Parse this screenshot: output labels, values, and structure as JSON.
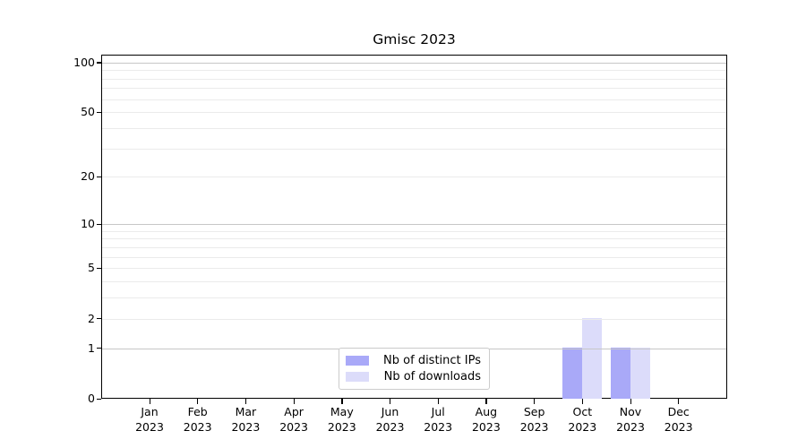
{
  "figure": {
    "title": "Gmisc 2023"
  },
  "chart_data": {
    "type": "bar",
    "title": "Gmisc 2023",
    "categories": [
      "Jan",
      "Feb",
      "Mar",
      "Apr",
      "May",
      "Jun",
      "Jul",
      "Aug",
      "Sep",
      "Oct",
      "Nov",
      "Dec"
    ],
    "category_year": "2023",
    "series": [
      {
        "name": "Nb of distinct IPs",
        "color": "#a9a9f8",
        "values": [
          0,
          0,
          0,
          0,
          0,
          0,
          0,
          0,
          0,
          1,
          1,
          0
        ]
      },
      {
        "name": "Nb of downloads",
        "color": "#dcdcfa",
        "values": [
          0,
          0,
          0,
          0,
          0,
          0,
          0,
          0,
          0,
          2,
          1,
          0
        ]
      }
    ],
    "xlabel": "",
    "ylabel": "",
    "y_axis": {
      "scale": "log1p",
      "range": [
        0,
        111
      ],
      "tick_labels": [
        "0",
        "1",
        "2",
        "5",
        "10",
        "20",
        "50",
        "100"
      ],
      "tick_values": [
        0,
        1,
        2,
        5,
        10,
        20,
        50,
        100
      ],
      "emphasized_gridlines": [
        1,
        10,
        100
      ],
      "light_gridlines": [
        2,
        3,
        4,
        5,
        6,
        7,
        8,
        9,
        20,
        30,
        40,
        50,
        60,
        70,
        80,
        90
      ],
      "grid": "on"
    },
    "legend": {
      "position": "lower center",
      "entries": [
        "Nb of distinct IPs",
        "Nb of downloads"
      ]
    }
  },
  "colors": {
    "background": "#ffffff",
    "spine": "#000000",
    "text": "#000000",
    "grid_major": "#c7c7c7",
    "grid_minor": "#ebebeb",
    "legend_border": "#cccccc",
    "series_distinct_ips": "#a9a9f8",
    "series_downloads": "#dcdcfa"
  }
}
